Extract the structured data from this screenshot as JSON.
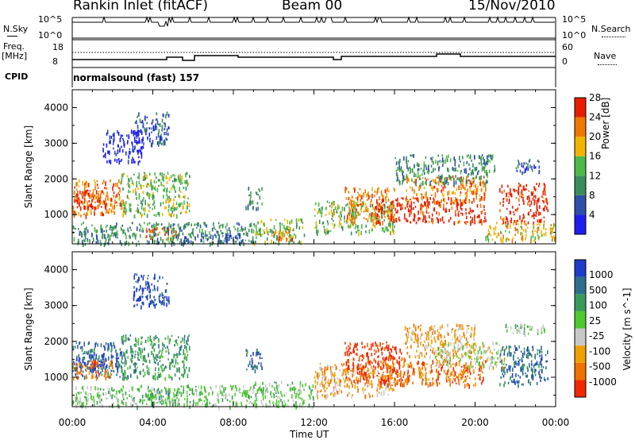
{
  "header": {
    "station": "Rankin Inlet (fitACF)",
    "beam": "Beam 00",
    "date": "15/Nov/2010"
  },
  "status_panel": {
    "left_label": "N.Sky",
    "right_label": "N.Search",
    "left_ticks": [
      "10^5",
      "10^0"
    ],
    "right_ticks": [
      "10^5",
      "10^0"
    ]
  },
  "freq_panel": {
    "left_label_line1": "Freq.",
    "left_label_line2": "[MHz]",
    "right_label": "Nave",
    "left_ticks": [
      "18",
      "8"
    ],
    "right_ticks": [
      "60",
      "0"
    ]
  },
  "cpid": {
    "label": "CPID",
    "value": "normalsound (fast) 157"
  },
  "x_axis": {
    "label": "Time UT",
    "ticks": [
      "00:00",
      "04:00",
      "08:00",
      "12:00",
      "16:00",
      "20:00",
      "00:00"
    ]
  },
  "chart_data": [
    {
      "type": "heatmap",
      "title": "",
      "ylabel": "Slant Range [km]",
      "xlabel": "",
      "x_ticks": [
        "00:00",
        "04:00",
        "08:00",
        "12:00",
        "16:00",
        "20:00",
        "00:00"
      ],
      "y_ticks": [
        "1000",
        "2000",
        "3000",
        "4000"
      ],
      "ylim": [
        180,
        4500
      ],
      "colorbar": {
        "label": "Power [dB]",
        "ticks": [
          "4",
          "8",
          "12",
          "16",
          "20",
          "24",
          "28"
        ],
        "colors": [
          "#1e1ef0",
          "#2e4ea8",
          "#3a8c5a",
          "#4fb84a",
          "#f0b400",
          "#f07800",
          "#e81e00"
        ]
      },
      "regions": [
        {
          "t": [
            0.0,
            2.6
          ],
          "r": [
            1000,
            2000
          ],
          "level": 5
        },
        {
          "t": [
            0.1,
            1.7
          ],
          "r": [
            1200,
            1700
          ],
          "level": 6
        },
        {
          "t": [
            2.4,
            5.8
          ],
          "r": [
            1000,
            2200
          ],
          "level": 3
        },
        {
          "t": [
            3.0,
            4.8
          ],
          "r": [
            3000,
            3900
          ],
          "level": 1
        },
        {
          "t": [
            1.5,
            3.5
          ],
          "r": [
            2500,
            3400
          ],
          "level": 0
        },
        {
          "t": [
            3.6,
            5.2
          ],
          "r": [
            300,
            700
          ],
          "level": 5
        },
        {
          "t": [
            0.0,
            9.0
          ],
          "r": [
            200,
            800
          ],
          "level": 2
        },
        {
          "t": [
            5.5,
            8.5
          ],
          "r": [
            250,
            500
          ],
          "level": 1
        },
        {
          "t": [
            9.0,
            11.5
          ],
          "r": [
            200,
            900
          ],
          "level": 3
        },
        {
          "t": [
            10.0,
            11.0
          ],
          "r": [
            300,
            600
          ],
          "level": 5
        },
        {
          "t": [
            8.6,
            9.4
          ],
          "r": [
            1200,
            1800
          ],
          "level": 2
        },
        {
          "t": [
            12.0,
            16.0
          ],
          "r": [
            500,
            1400
          ],
          "level": 3
        },
        {
          "t": [
            13.5,
            16.0
          ],
          "r": [
            800,
            1800
          ],
          "level": 5
        },
        {
          "t": [
            15.0,
            20.5
          ],
          "r": [
            800,
            1500
          ],
          "level": 6
        },
        {
          "t": [
            16.5,
            20.5
          ],
          "r": [
            1400,
            2100
          ],
          "level": 5
        },
        {
          "t": [
            16.0,
            21.0
          ],
          "r": [
            1900,
            2700
          ],
          "level": 2
        },
        {
          "t": [
            21.2,
            23.6
          ],
          "r": [
            800,
            1900
          ],
          "level": 6
        },
        {
          "t": [
            20.5,
            24.0
          ],
          "r": [
            300,
            800
          ],
          "level": 4
        },
        {
          "t": [
            22.0,
            23.2
          ],
          "r": [
            2200,
            2600
          ],
          "level": 1
        }
      ]
    },
    {
      "type": "heatmap",
      "title": "",
      "ylabel": "Slant Range [km]",
      "xlabel": "Time UT",
      "x_ticks": [
        "00:00",
        "04:00",
        "08:00",
        "12:00",
        "16:00",
        "20:00",
        "00:00"
      ],
      "y_ticks": [
        "1000",
        "2000",
        "3000",
        "4000"
      ],
      "ylim": [
        180,
        4500
      ],
      "colorbar": {
        "label": "Velocity [m s^-1]",
        "ticks": [
          "1000",
          "500",
          "100",
          "25",
          "-25",
          "-100",
          "-500",
          "-1000"
        ],
        "colors": [
          "#1e3cc8",
          "#2e6e8c",
          "#3a9a5a",
          "#50c832",
          "#c8c8c8",
          "#f0a000",
          "#f07000",
          "#f02800"
        ]
      },
      "regions": [
        {
          "t": [
            0.0,
            2.6
          ],
          "r": [
            1000,
            2000
          ],
          "level": 1
        },
        {
          "t": [
            0.1,
            1.7
          ],
          "r": [
            1200,
            1700
          ],
          "level": 0
        },
        {
          "t": [
            2.4,
            5.8
          ],
          "r": [
            1000,
            2200
          ],
          "level": 2
        },
        {
          "t": [
            3.0,
            4.8
          ],
          "r": [
            3000,
            3900
          ],
          "level": 0
        },
        {
          "t": [
            0.0,
            2.0
          ],
          "r": [
            1000,
            1500
          ],
          "level": 6
        },
        {
          "t": [
            3.6,
            5.2
          ],
          "r": [
            300,
            700
          ],
          "level": 2
        },
        {
          "t": [
            0.0,
            9.0
          ],
          "r": [
            200,
            800
          ],
          "level": 3
        },
        {
          "t": [
            8.6,
            9.4
          ],
          "r": [
            1200,
            1800
          ],
          "level": 1
        },
        {
          "t": [
            9.0,
            12.0
          ],
          "r": [
            200,
            900
          ],
          "level": 3
        },
        {
          "t": [
            12.0,
            16.0
          ],
          "r": [
            500,
            1400
          ],
          "level": 5
        },
        {
          "t": [
            13.5,
            16.5
          ],
          "r": [
            800,
            2000
          ],
          "level": 7
        },
        {
          "t": [
            15.0,
            20.5
          ],
          "r": [
            800,
            1500
          ],
          "level": 6
        },
        {
          "t": [
            16.5,
            20.0
          ],
          "r": [
            1600,
            2500
          ],
          "level": 5
        },
        {
          "t": [
            18.0,
            21.5
          ],
          "r": [
            1300,
            2000
          ],
          "level": 4
        },
        {
          "t": [
            21.2,
            23.6
          ],
          "r": [
            800,
            1900
          ],
          "level": 1
        },
        {
          "t": [
            21.5,
            23.5
          ],
          "r": [
            2200,
            2500
          ],
          "level": 3
        }
      ]
    }
  ]
}
